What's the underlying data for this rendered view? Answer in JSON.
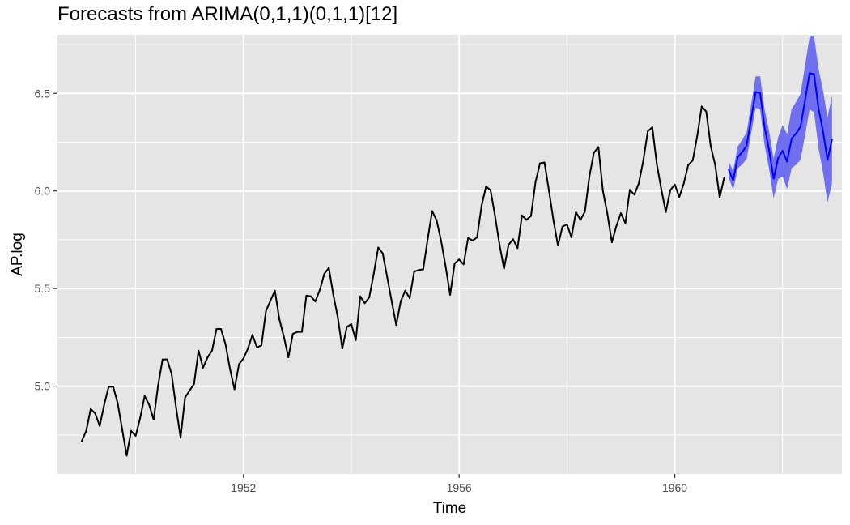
{
  "chart_data": {
    "type": "line",
    "title": "Forecasts from ARIMA(0,1,1)(0,1,1)[12]",
    "xlabel": "Time",
    "ylabel": "AP.log",
    "xlim": [
      1948.55,
      1963.1
    ],
    "ylim": [
      4.55,
      6.8
    ],
    "grid": true,
    "x_ticks": [
      {
        "value": 1952,
        "label": "1952"
      },
      {
        "value": 1956,
        "label": "1956"
      },
      {
        "value": 1960,
        "label": "1960"
      }
    ],
    "x_minor_ticks": [
      1950,
      1954,
      1958,
      1962
    ],
    "y_ticks": [
      {
        "value": 5.0,
        "label": "5.0"
      },
      {
        "value": 5.5,
        "label": "5.5"
      },
      {
        "value": 6.0,
        "label": "6.0"
      },
      {
        "value": 6.5,
        "label": "6.5"
      }
    ],
    "y_minor_ticks": [
      4.75,
      5.25,
      5.75,
      6.25,
      6.75
    ],
    "colors": {
      "panel": "#e5e5e5",
      "grid": "#ffffff",
      "observed": "#000000",
      "forecast": "#0000ff",
      "interval": "#6f6ff0"
    },
    "series": [
      {
        "kind": "observed",
        "x_start": 1949.0,
        "x_step": 0.0833333,
        "values": [
          4.718,
          4.771,
          4.883,
          4.86,
          4.796,
          4.905,
          4.997,
          4.997,
          4.913,
          4.779,
          4.644,
          4.771,
          4.745,
          4.836,
          4.949,
          4.905,
          4.828,
          5.004,
          5.137,
          5.137,
          5.063,
          4.89,
          4.736,
          4.942,
          4.977,
          5.011,
          5.182,
          5.094,
          5.147,
          5.182,
          5.293,
          5.293,
          5.215,
          5.088,
          4.984,
          5.112,
          5.142,
          5.193,
          5.263,
          5.198,
          5.209,
          5.384,
          5.438,
          5.489,
          5.342,
          5.252,
          5.148,
          5.268,
          5.278,
          5.278,
          5.464,
          5.46,
          5.434,
          5.493,
          5.576,
          5.606,
          5.468,
          5.352,
          5.193,
          5.303,
          5.318,
          5.236,
          5.46,
          5.425,
          5.455,
          5.576,
          5.71,
          5.68,
          5.557,
          5.434,
          5.313,
          5.434,
          5.489,
          5.451,
          5.587,
          5.595,
          5.598,
          5.753,
          5.897,
          5.849,
          5.743,
          5.613,
          5.468,
          5.628,
          5.649,
          5.624,
          5.759,
          5.746,
          5.762,
          5.924,
          6.023,
          6.004,
          5.872,
          5.724,
          5.602,
          5.724,
          5.753,
          5.707,
          5.875,
          5.852,
          5.872,
          6.045,
          6.142,
          6.146,
          6.001,
          5.849,
          5.72,
          5.817,
          5.829,
          5.762,
          5.892,
          5.852,
          5.894,
          6.075,
          6.196,
          6.225,
          6.001,
          5.883,
          5.737,
          5.82,
          5.886,
          5.835,
          6.006,
          5.981,
          6.04,
          6.157,
          6.306,
          6.326,
          6.138,
          6.009,
          5.892,
          6.004,
          6.033,
          5.969,
          6.038,
          6.133,
          6.157,
          6.282,
          6.433,
          6.407,
          6.23,
          6.133,
          5.966,
          6.068
        ]
      },
      {
        "kind": "forecast",
        "x_start": 1961.0,
        "x_step": 0.0833333,
        "values": [
          6.11,
          6.054,
          6.172,
          6.199,
          6.233,
          6.369,
          6.507,
          6.503,
          6.325,
          6.209,
          6.063,
          6.168,
          6.206,
          6.15,
          6.268,
          6.295,
          6.329,
          6.465,
          6.603,
          6.599,
          6.422,
          6.305,
          6.159,
          6.264
        ],
        "upper": [
          6.15,
          6.103,
          6.228,
          6.262,
          6.302,
          6.443,
          6.587,
          6.588,
          6.416,
          6.306,
          6.165,
          6.275,
          6.338,
          6.291,
          6.419,
          6.456,
          6.498,
          6.643,
          6.789,
          6.794,
          6.625,
          6.515,
          6.377,
          6.49
        ],
        "lower": [
          6.07,
          6.005,
          6.116,
          6.136,
          6.164,
          6.295,
          6.427,
          6.418,
          6.234,
          6.112,
          5.961,
          6.061,
          6.074,
          6.009,
          6.117,
          6.134,
          6.16,
          6.287,
          6.417,
          6.404,
          6.219,
          6.095,
          5.941,
          6.038
        ]
      }
    ]
  }
}
